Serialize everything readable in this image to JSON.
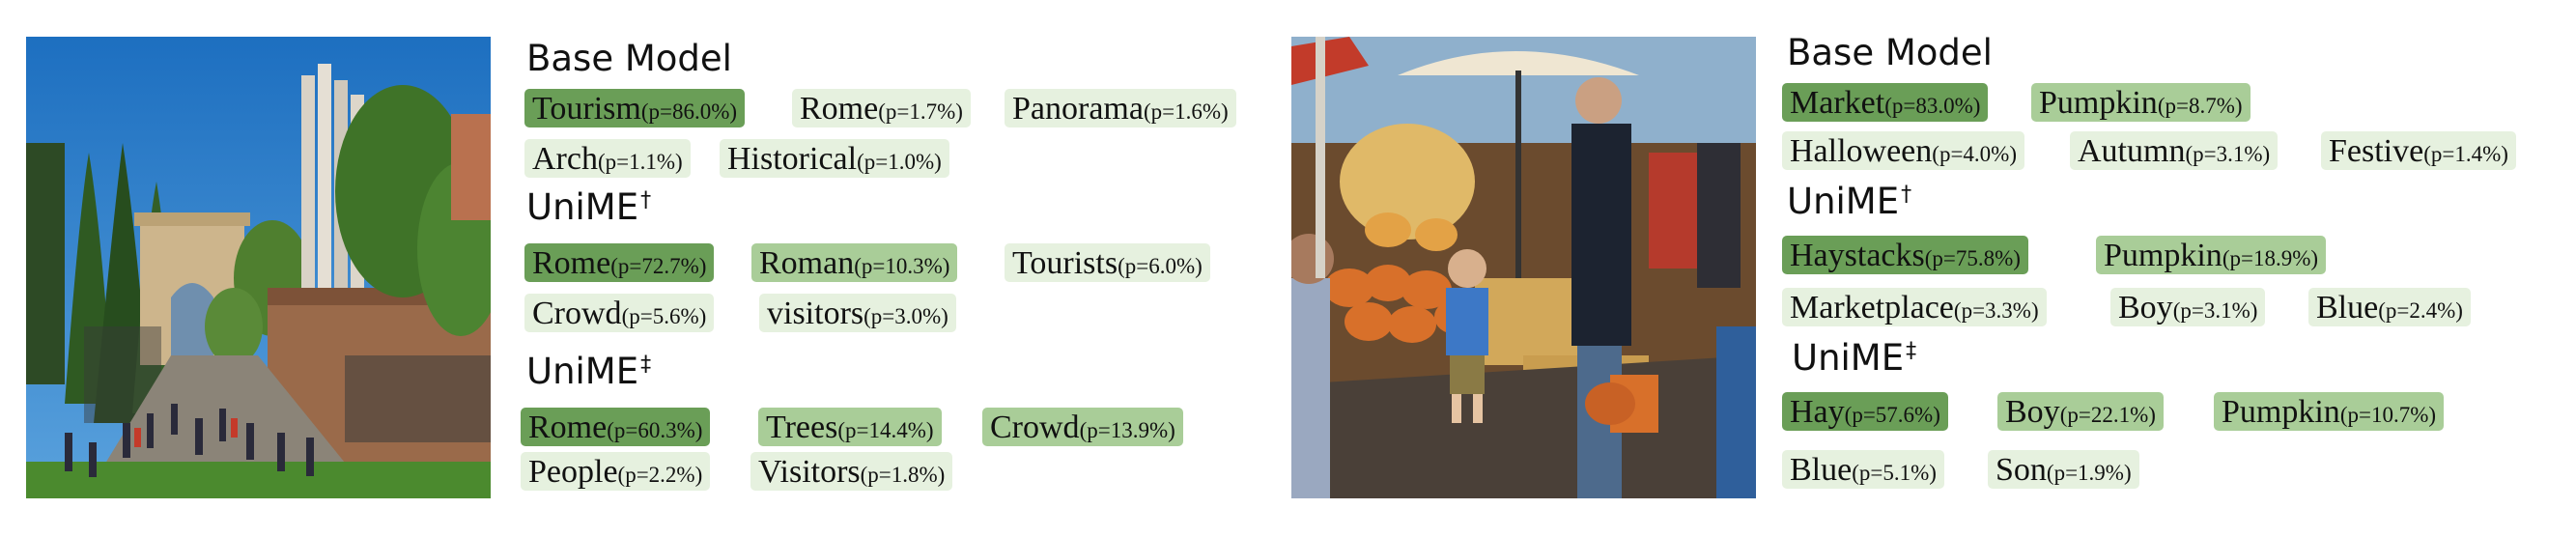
{
  "colors": {
    "top": "#6a9e57",
    "mid": "#a9cd98",
    "low": "#e6f1df"
  },
  "panels": [
    {
      "image_alt": "Arch of Titus, Rome",
      "groups": [
        {
          "title": "Base Model",
          "mark": "",
          "rows": [
            [
              {
                "word": "Tourism",
                "prob": "(p=86.0%)",
                "shade": "top"
              },
              {
                "word": "Rome",
                "prob": "(p=1.7%)",
                "shade": "low"
              },
              {
                "word": "Panorama",
                "prob": "(p=1.6%)",
                "shade": "low"
              }
            ],
            [
              {
                "word": "Arch",
                "prob": "(p=1.1%)",
                "shade": "low"
              },
              {
                "word": "Historical",
                "prob": "(p=1.0%)",
                "shade": "low"
              }
            ]
          ]
        },
        {
          "title": "UniME",
          "mark": "†",
          "rows": [
            [
              {
                "word": "Rome",
                "prob": "(p=72.7%)",
                "shade": "top"
              },
              {
                "word": "Roman",
                "prob": "(p=10.3%)",
                "shade": "mid"
              },
              {
                "word": "Tourists",
                "prob": "(p=6.0%)",
                "shade": "low"
              }
            ],
            [
              {
                "word": "Crowd",
                "prob": "(p=5.6%)",
                "shade": "low"
              },
              {
                "word": "visitors",
                "prob": "(p=3.0%)",
                "shade": "low"
              }
            ]
          ]
        },
        {
          "title": "UniME",
          "mark": "‡",
          "rows": [
            [
              {
                "word": "Rome",
                "prob": "(p=60.3%)",
                "shade": "top"
              },
              {
                "word": "Trees",
                "prob": "(p=14.4%)",
                "shade": "mid"
              },
              {
                "word": "Crowd",
                "prob": "(p=13.9%)",
                "shade": "mid"
              }
            ],
            [
              {
                "word": "People",
                "prob": "(p=2.2%)",
                "shade": "low"
              },
              {
                "word": "Visitors",
                "prob": "(p=1.8%)",
                "shade": "low"
              }
            ]
          ]
        }
      ]
    },
    {
      "image_alt": "Pumpkin market with haystacks",
      "groups": [
        {
          "title": "Base Model",
          "mark": "",
          "rows": [
            [
              {
                "word": "Market",
                "prob": "(p=83.0%)",
                "shade": "top"
              },
              {
                "word": "Pumpkin",
                "prob": "(p=8.7%)",
                "shade": "mid"
              }
            ],
            [
              {
                "word": "Halloween",
                "prob": "(p=4.0%)",
                "shade": "low"
              },
              {
                "word": "Autumn",
                "prob": "(p=3.1%)",
                "shade": "low"
              },
              {
                "word": "Festive",
                "prob": "(p=1.4%)",
                "shade": "low"
              }
            ]
          ]
        },
        {
          "title": "UniME",
          "mark": "†",
          "rows": [
            [
              {
                "word": "Haystacks",
                "prob": "(p=75.8%)",
                "shade": "top"
              },
              {
                "word": "Pumpkin",
                "prob": "(p=18.9%)",
                "shade": "mid"
              }
            ],
            [
              {
                "word": "Marketplace",
                "prob": "(p=3.3%)",
                "shade": "low"
              },
              {
                "word": "Boy",
                "prob": "(p=3.1%)",
                "shade": "low"
              },
              {
                "word": "Blue",
                "prob": "(p=2.4%)",
                "shade": "low"
              }
            ]
          ]
        },
        {
          "title": "UniME",
          "mark": "‡",
          "rows": [
            [
              {
                "word": "Hay",
                "prob": "(p=57.6%)",
                "shade": "top"
              },
              {
                "word": "Boy",
                "prob": "(p=22.1%)",
                "shade": "mid"
              },
              {
                "word": "Pumpkin",
                "prob": "(p=10.7%)",
                "shade": "mid"
              }
            ],
            [
              {
                "word": "Blue",
                "prob": "(p=5.1%)",
                "shade": "low"
              },
              {
                "word": "Son",
                "prob": "(p=1.9%)",
                "shade": "low"
              }
            ]
          ]
        }
      ]
    }
  ]
}
